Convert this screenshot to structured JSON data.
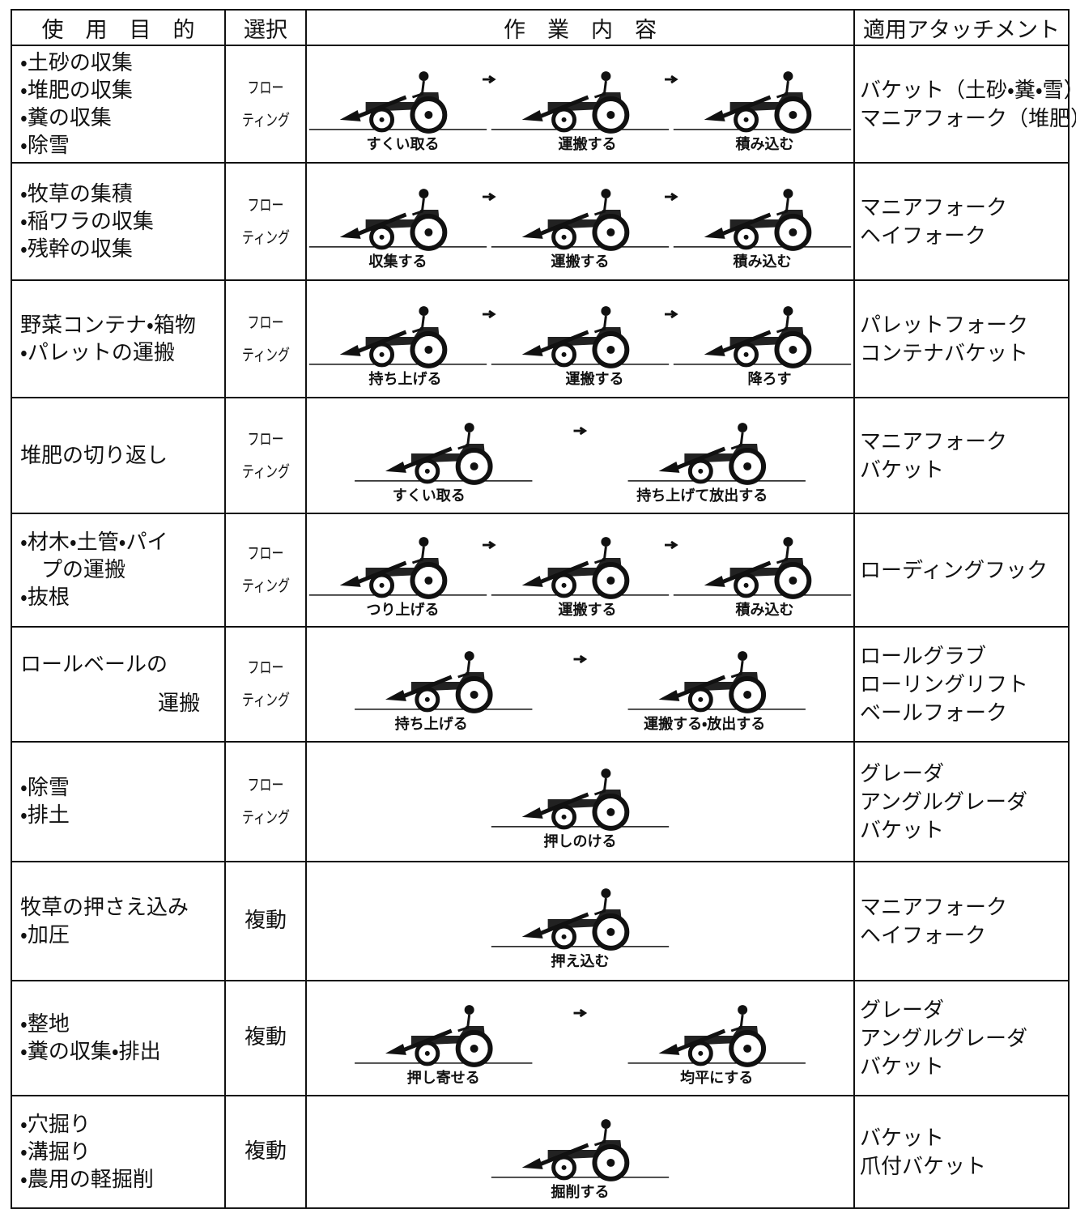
{
  "header": {
    "columns": [
      "使　用　目　的",
      "選択",
      "作　業　内　容",
      "適用アタッチメント"
    ]
  },
  "rows": [
    {
      "purpose": [
        "・土砂の収集",
        "・堆肥の収集",
        "・糞の収集",
        "・除雪"
      ],
      "selection": [
        "フロー",
        "ティング"
      ],
      "work": [
        "すくい取る",
        "運搬する",
        "積み込む"
      ],
      "attachments": [
        "バケット（土砂・糞・雪）",
        "マニアフォーク（堆肥）"
      ]
    },
    {
      "purpose": [
        "・牧草の集積",
        "・稲ワラの収集",
        "・残幹の収集"
      ],
      "selection": [
        "フロー",
        "ティング"
      ],
      "work": [
        "収集する",
        "運搬する",
        "積み込む"
      ],
      "attachments": [
        "マニアフォーク",
        "ヘイフォーク"
      ]
    },
    {
      "purpose": [
        "野菜コンテナ・箱物",
        "・パレットの運搬"
      ],
      "selection": [
        "フロー",
        "ティング"
      ],
      "work": [
        "持ち上げる",
        "運搬する",
        "降ろす"
      ],
      "attachments": [
        "パレットフォーク",
        "コンテナバケット"
      ]
    },
    {
      "purpose": [
        "堆肥の切り返し"
      ],
      "selection": [
        "フロー",
        "ティング"
      ],
      "work": [
        "すくい取る",
        "持ち上げて放出する"
      ],
      "attachments": [
        "マニアフォーク",
        "バケット"
      ]
    },
    {
      "purpose": [
        "・材木・土管・パイ",
        "　プの運搬",
        "・抜根"
      ],
      "selection": [
        "フロー",
        "ティング"
      ],
      "work": [
        "つり上げる",
        "運搬する",
        "積み込む"
      ],
      "attachments": [
        "ローディングフック"
      ]
    },
    {
      "purpose": [
        "ロールベールの",
        "運搬"
      ],
      "selection": [
        "フロー",
        "ティング"
      ],
      "work": [
        "持ち上げる",
        "運搬する・放出する"
      ],
      "attachments": [
        "ロールグラブ",
        "ローリングリフト",
        "ベールフォーク"
      ]
    },
    {
      "purpose": [
        "・除雪",
        "・排土"
      ],
      "selection": [
        "フロー",
        "ティング"
      ],
      "work": [
        "押しのける"
      ],
      "attachments": [
        "グレーダ",
        "アングルグレーダ",
        "バケット"
      ]
    },
    {
      "purpose": [
        "牧草の押さえ込み",
        "・加圧"
      ],
      "selection": [
        "複動"
      ],
      "work": [
        "押え込む"
      ],
      "attachments": [
        "マニアフォーク",
        "ヘイフォーク"
      ]
    },
    {
      "purpose": [
        "・整地",
        "・糞の収集・排出"
      ],
      "selection": [
        "複動"
      ],
      "work": [
        "押し寄せる",
        "均平にする"
      ],
      "attachments": [
        "グレーダ",
        "アングルグレーダ",
        "バケット"
      ]
    },
    {
      "purpose": [
        "・穴掘り",
        "・溝掘り",
        "・農用の軽掘削"
      ],
      "selection": [
        "複動"
      ],
      "work": [
        "掘削する"
      ],
      "attachments": [
        "バケット",
        "爪付バケット"
      ]
    }
  ]
}
